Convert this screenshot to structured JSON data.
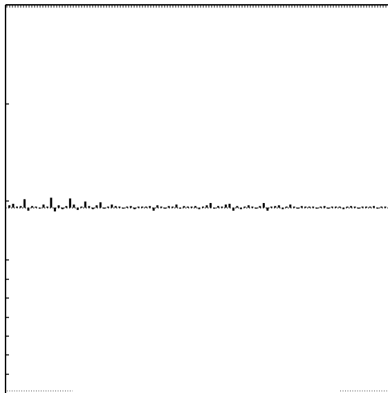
{
  "chart_data": {
    "type": "bar",
    "title": "",
    "xlabel": "",
    "ylabel": "",
    "grid": false,
    "legend": "none",
    "color": "#000000",
    "values": [
      0.15,
      0.25,
      0.05,
      0.1,
      0.55,
      -0.2,
      0.1,
      0.05,
      -0.05,
      0.2,
      0.05,
      0.65,
      -0.25,
      0.15,
      -0.1,
      0.1,
      0.6,
      0.2,
      -0.15,
      0.05,
      0.4,
      0.1,
      -0.1,
      0.15,
      0.35,
      -0.05,
      0.05,
      0.2,
      0.1,
      0.05,
      -0.05,
      0.05,
      0.1,
      -0.1,
      0.05,
      0.0,
      0.05,
      0.1,
      -0.2,
      0.15,
      0.05,
      -0.05,
      0.1,
      0.05,
      0.2,
      -0.05,
      0.1,
      0.05,
      0.0,
      0.1,
      -0.1,
      0.05,
      0.15,
      0.3,
      -0.05,
      0.1,
      0.05,
      0.2,
      0.25,
      -0.2,
      0.1,
      -0.1,
      0.05,
      0.15,
      0.05,
      -0.05,
      0.1,
      0.3,
      -0.2,
      0.05,
      0.1,
      0.15,
      -0.1,
      0.05,
      0.2,
      0.05,
      -0.05,
      0.1,
      0.05,
      0.0,
      0.05,
      -0.05,
      0.05,
      0.1,
      -0.05,
      0.05,
      0.0,
      0.05,
      -0.1,
      0.05,
      0.1,
      0.05,
      -0.05,
      0.05,
      0.0,
      0.05,
      0.1,
      -0.05,
      0.05,
      0.0
    ],
    "ylim": [
      -4.0,
      4.6
    ]
  }
}
